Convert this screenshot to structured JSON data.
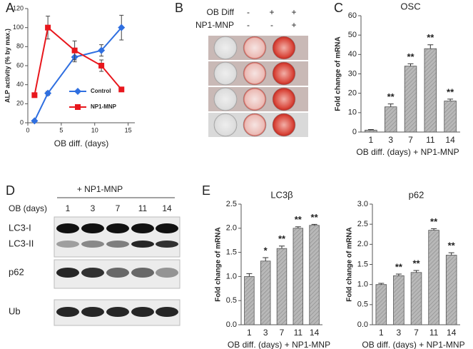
{
  "panels": [
    "A",
    "B",
    "C",
    "D",
    "E"
  ],
  "plate": {
    "rows": [
      {
        "label": "OB Diff",
        "signs": [
          "-",
          "+",
          "+"
        ]
      },
      {
        "label": "NP1-MNP",
        "signs": [
          "-",
          "-",
          "+"
        ]
      }
    ]
  },
  "blot": {
    "treatment": "+ NP1-MNP",
    "lane_label": "OB (days)",
    "lanes": [
      "1",
      "3",
      "7",
      "11",
      "14"
    ],
    "bands": [
      "LC3-I",
      "LC3-II",
      "p62",
      "Ub"
    ]
  },
  "chart_data": [
    {
      "type": "line",
      "x_label": "OB diff. (days)",
      "y_label": "ALP activity (% by max.)",
      "x": [
        1,
        3,
        7,
        11,
        14
      ],
      "xlim": [
        0,
        16
      ],
      "xticks": [
        0,
        5,
        10,
        15
      ],
      "ylim": [
        0,
        120
      ],
      "yticks": [
        0,
        20,
        40,
        60,
        80,
        100,
        120
      ],
      "legend": "lower-right",
      "series": [
        {
          "name": "Control",
          "color": "#2f6fe0",
          "marker": "diamond",
          "values": [
            2,
            31,
            69,
            76,
            100
          ],
          "errors": [
            1,
            2,
            5,
            6,
            13
          ]
        },
        {
          "name": "NP1-MNP",
          "color": "#e8171d",
          "marker": "square",
          "values": [
            29,
            100,
            76,
            60,
            35
          ],
          "errors": [
            0,
            12,
            10,
            6,
            2
          ]
        }
      ]
    },
    {
      "type": "bar",
      "title": "OSC",
      "x_label": "OB diff. (days) + NP1-MNP",
      "y_label": "Fold change of mRNA",
      "categories": [
        "1",
        "3",
        "7",
        "11",
        "14"
      ],
      "values": [
        1,
        13,
        34,
        43,
        16
      ],
      "errors": [
        0.3,
        1.5,
        1.2,
        2,
        1
      ],
      "annotations": [
        null,
        "**",
        "**",
        "**",
        "**"
      ],
      "color": "#b3b3b3",
      "ylim": [
        0,
        60
      ],
      "yticks": [
        0,
        10,
        20,
        30,
        40,
        50,
        60
      ]
    },
    {
      "type": "bar",
      "title": "LC3β",
      "x_label": "OB diff. (days) + NP1-MNP",
      "y_label": "Fold change of mRNA",
      "categories": [
        "1",
        "3",
        "7",
        "11",
        "14"
      ],
      "values": [
        1.0,
        1.32,
        1.58,
        2.0,
        2.06
      ],
      "errors": [
        0.06,
        0.07,
        0.05,
        0.03,
        0.02
      ],
      "annotations": [
        null,
        "*",
        "**",
        "**",
        "**"
      ],
      "color": "#b3b3b3",
      "ylim": [
        0,
        2.5
      ],
      "yticks": [
        {
          "value": 0,
          "label": "0.0"
        },
        {
          "value": 0.5,
          "label": "0.5"
        },
        {
          "value": 1,
          "label": "1.0"
        },
        {
          "value": 1.5,
          "label": "1.5"
        },
        {
          "value": 2,
          "label": "2.0"
        },
        {
          "value": 2.5,
          "label": "2.5"
        }
      ]
    },
    {
      "type": "bar",
      "title": "p62",
      "x_label": "OB diff. (days) + NP1-MNP",
      "y_label": "Fold change of mRNA",
      "categories": [
        "1",
        "3",
        "7",
        "11",
        "14"
      ],
      "values": [
        1.0,
        1.22,
        1.3,
        2.35,
        1.73
      ],
      "errors": [
        0.03,
        0.04,
        0.05,
        0.04,
        0.06
      ],
      "annotations": [
        null,
        "**",
        "**",
        "**",
        "**"
      ],
      "color": "#b3b3b3",
      "ylim": [
        0,
        3
      ],
      "yticks": [
        {
          "value": 0,
          "label": "0.0"
        },
        {
          "value": 0.5,
          "label": "0.5"
        },
        {
          "value": 1,
          "label": "1.0"
        },
        {
          "value": 1.5,
          "label": "1.5"
        },
        {
          "value": 2,
          "label": "2.0"
        },
        {
          "value": 2.5,
          "label": "2.5"
        },
        {
          "value": 3,
          "label": "3.0"
        }
      ]
    }
  ]
}
